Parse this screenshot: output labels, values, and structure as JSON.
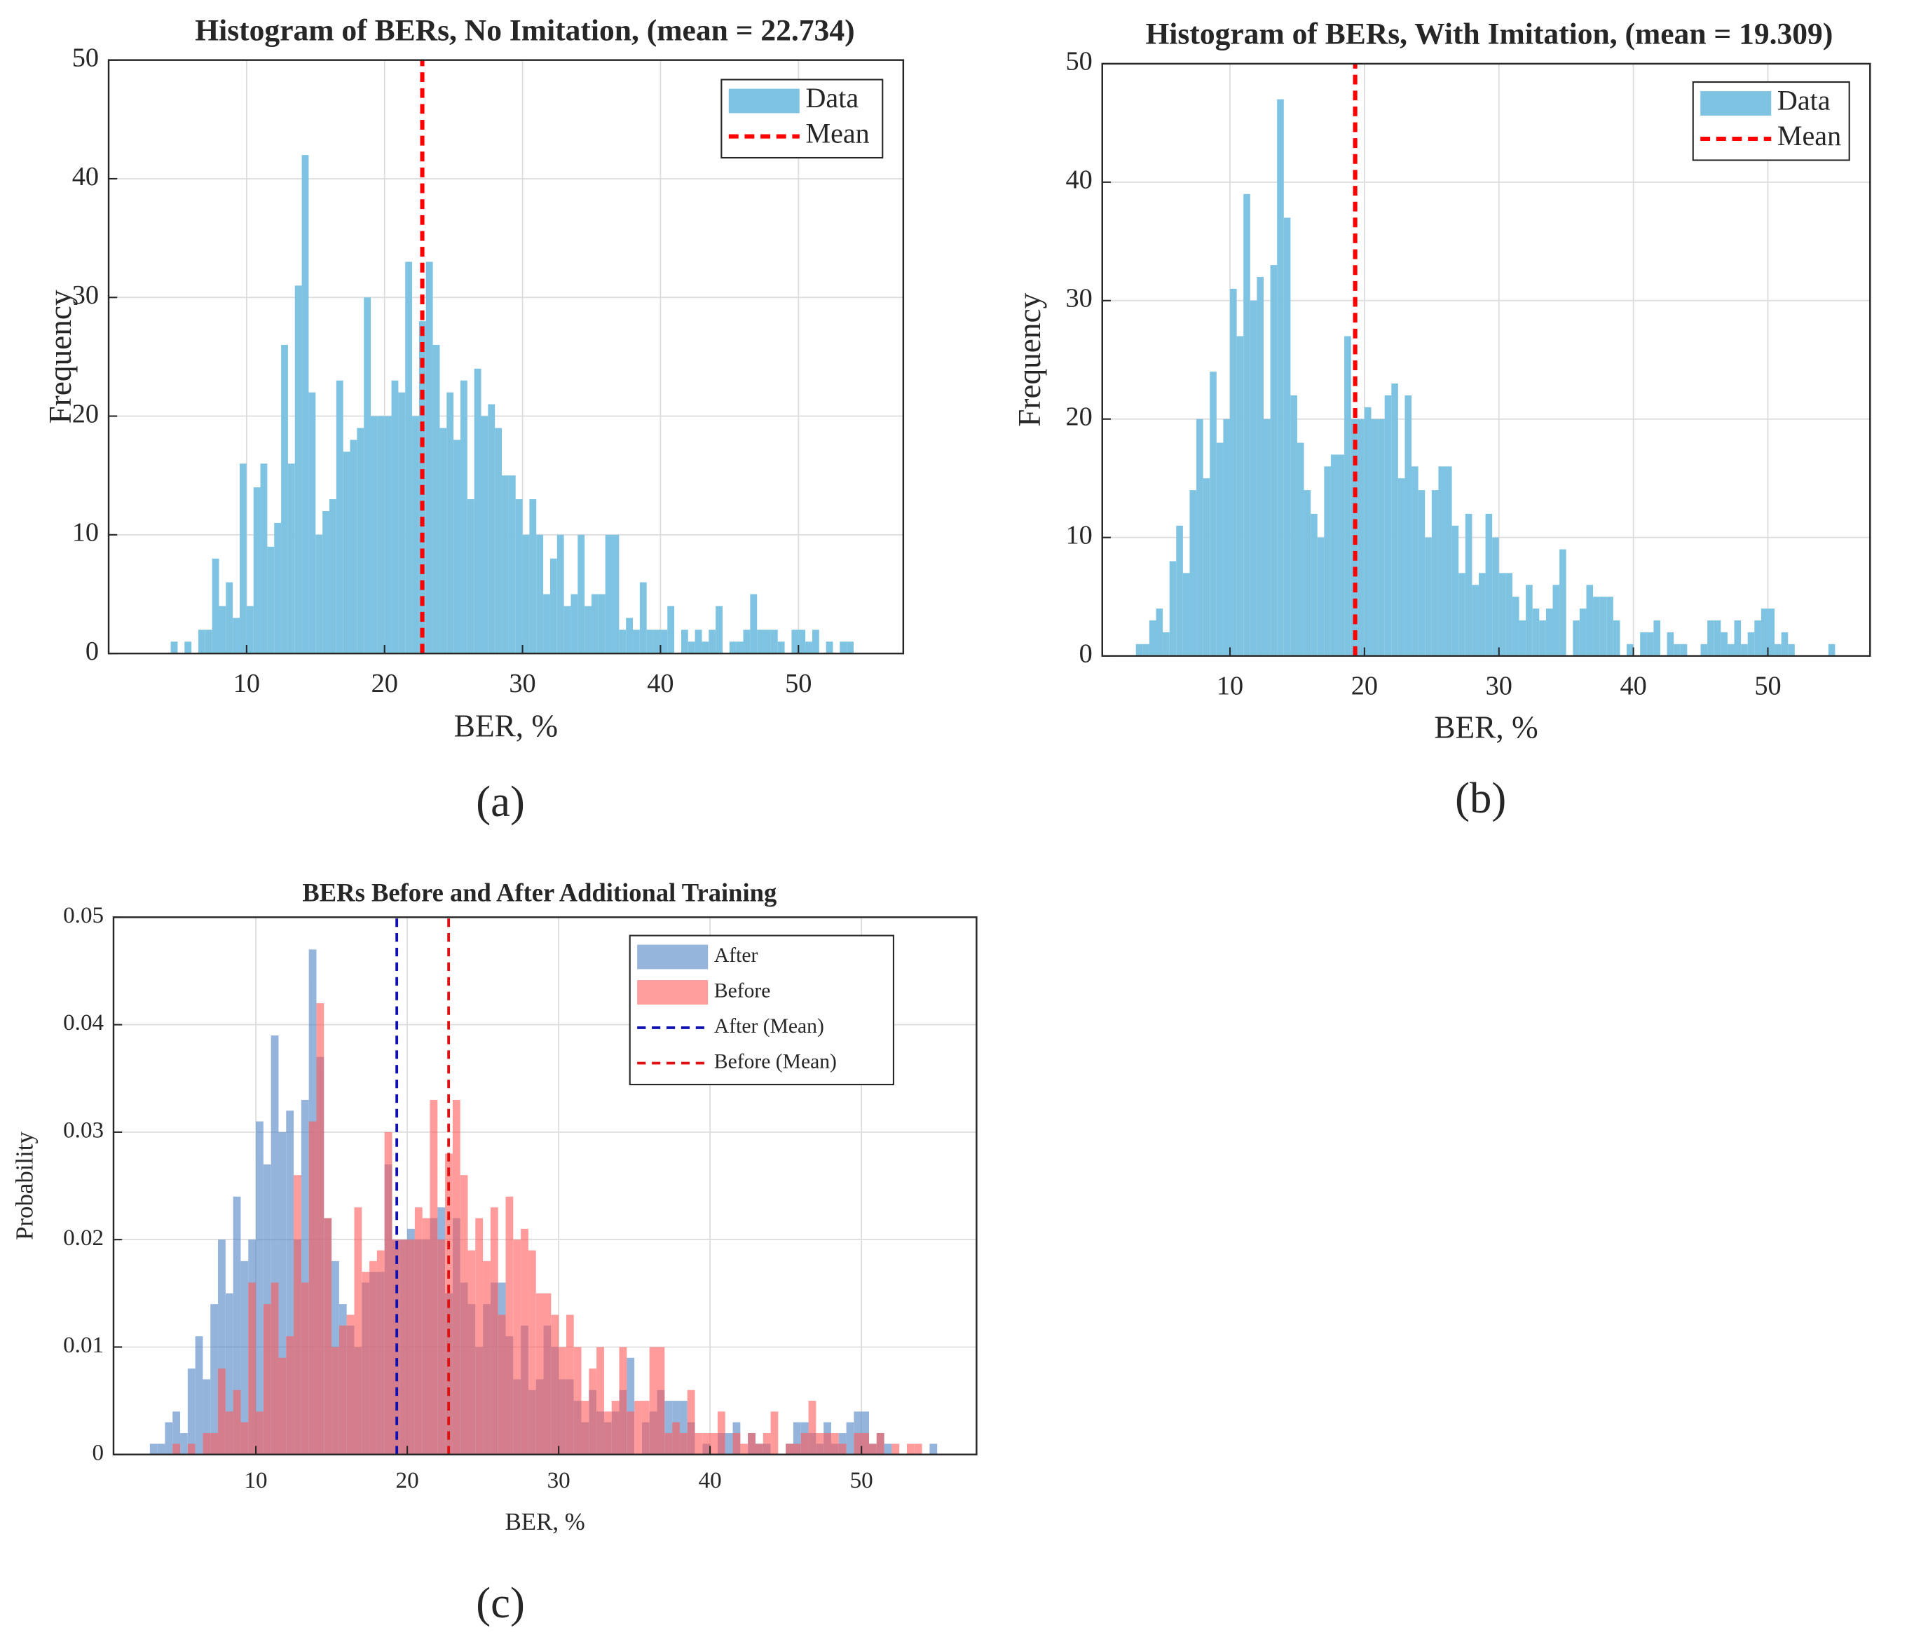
{
  "chart_data": [
    {
      "type": "histogram",
      "title": "Histogram of BERs, No Imitation, (mean = 22.734)",
      "xlabel": "BER, %",
      "ylabel": "Frequency",
      "caption": "(a)",
      "series": [
        {
          "name": "Data",
          "color": "#7ec4e2",
          "bins": [
            4,
            4.5,
            5,
            5.5,
            6,
            6.5,
            7,
            7.5,
            8,
            8.5,
            9,
            9.5,
            10,
            10.5,
            11,
            11.5,
            12,
            12.5,
            13,
            13.5,
            14,
            14.5,
            15,
            15.5,
            16,
            16.5,
            17,
            17.5,
            18,
            18.5,
            19,
            19.5,
            20,
            20.5,
            21,
            21.5,
            22,
            22.5,
            23,
            23.5,
            24,
            24.5,
            25,
            25.5,
            26,
            26.5,
            27,
            27.5,
            28,
            28.5,
            29,
            29.5,
            30,
            30.5,
            31,
            31.5,
            32,
            32.5,
            33,
            33.5,
            34,
            34.5,
            35,
            35.5,
            36,
            36.5,
            37,
            37.5,
            38,
            38.5,
            39,
            39.5,
            40,
            40.5,
            41,
            41.5,
            42,
            42.5,
            43,
            43.5,
            44,
            44.5,
            45,
            45.5,
            46,
            46.5,
            47,
            47.5,
            48,
            48.5,
            49,
            49.5,
            50,
            50.5,
            51,
            51.5,
            52,
            52.5,
            53,
            53.5,
            54,
            54.5,
            55
          ],
          "values": [
            0,
            1,
            0,
            1,
            0,
            2,
            2,
            8,
            4,
            6,
            3,
            16,
            4,
            14,
            16,
            9,
            11,
            26,
            16,
            31,
            42,
            22,
            10,
            12,
            13,
            23,
            17,
            18,
            19,
            30,
            20,
            20,
            20,
            23,
            22,
            33,
            20,
            28,
            33,
            26,
            19,
            22,
            18,
            23,
            13,
            24,
            20,
            21,
            19,
            15,
            15,
            13,
            10,
            13,
            10,
            5,
            8,
            10,
            4,
            5,
            10,
            4,
            5,
            5,
            10,
            10,
            2,
            3,
            2,
            6,
            2,
            2,
            2,
            4,
            0,
            2,
            1,
            2,
            1,
            2,
            4,
            0,
            1,
            1,
            2,
            5,
            2,
            2,
            2,
            1,
            0,
            2,
            2,
            1,
            2,
            0,
            1,
            0,
            1,
            1,
            0,
            0
          ]
        }
      ],
      "means": [
        {
          "name": "Mean",
          "value": 22.734,
          "color": "#ff0000"
        }
      ],
      "xlim": [
        0,
        57.6
      ],
      "ylim": [
        0,
        50
      ],
      "xticks": [
        10,
        20,
        30,
        40,
        50
      ],
      "yticks": [
        0,
        10,
        20,
        30,
        40,
        50
      ],
      "grid": true,
      "legend": "upper right"
    },
    {
      "type": "histogram",
      "title": "Histogram of BERs, With Imitation, (mean = 19.309)",
      "xlabel": "BER, %",
      "ylabel": "Frequency",
      "caption": "(b)",
      "series": [
        {
          "name": "Data",
          "color": "#7ec4e2",
          "bins": [
            3,
            3.5,
            4,
            4.5,
            5,
            5.5,
            6,
            6.5,
            7,
            7.5,
            8,
            8.5,
            9,
            9.5,
            10,
            10.5,
            11,
            11.5,
            12,
            12.5,
            13,
            13.5,
            14,
            14.5,
            15,
            15.5,
            16,
            16.5,
            17,
            17.5,
            18,
            18.5,
            19,
            19.5,
            20,
            20.5,
            21,
            21.5,
            22,
            22.5,
            23,
            23.5,
            24,
            24.5,
            25,
            25.5,
            26,
            26.5,
            27,
            27.5,
            28,
            28.5,
            29,
            29.5,
            30,
            30.5,
            31,
            31.5,
            32,
            32.5,
            33,
            33.5,
            34,
            34.5,
            35,
            35.5,
            36,
            36.5,
            37,
            37.5,
            38,
            38.5,
            39,
            39.5,
            40,
            40.5,
            41,
            41.5,
            42,
            42.5,
            43,
            43.5,
            44,
            44.5,
            45,
            45.5,
            46,
            46.5,
            47,
            47.5,
            48,
            48.5,
            49,
            49.5,
            50,
            50.5,
            51,
            51.5,
            52,
            52.5,
            53,
            53.5,
            54,
            54.5,
            55,
            55.5
          ],
          "values": [
            1,
            1,
            3,
            4,
            2,
            8,
            11,
            7,
            14,
            20,
            15,
            24,
            18,
            20,
            31,
            27,
            39,
            30,
            32,
            20,
            33,
            47,
            37,
            22,
            18,
            14,
            12,
            10,
            16,
            17,
            17,
            27,
            20,
            20,
            21,
            20,
            20,
            22,
            23,
            15,
            22,
            16,
            14,
            10,
            14,
            16,
            16,
            11,
            7,
            12,
            6,
            7,
            12,
            10,
            7,
            7,
            5,
            3,
            6,
            4,
            3,
            4,
            6,
            9,
            0,
            3,
            4,
            6,
            5,
            5,
            5,
            3,
            0,
            1,
            0,
            2,
            2,
            3,
            0,
            2,
            1,
            1,
            0,
            0,
            1,
            3,
            3,
            2,
            1,
            3,
            1,
            2,
            3,
            4,
            4,
            1,
            2,
            1,
            0,
            0,
            0,
            0,
            0,
            1,
            0
          ]
        }
      ],
      "means": [
        {
          "name": "Mean",
          "value": 19.309,
          "color": "#ff0000"
        }
      ],
      "xlim": [
        0.5,
        57.6
      ],
      "ylim": [
        0,
        50
      ],
      "xticks": [
        10,
        20,
        30,
        40,
        50
      ],
      "yticks": [
        0,
        10,
        20,
        30,
        40,
        50
      ],
      "grid": true,
      "legend": "upper right"
    },
    {
      "type": "histogram",
      "title": "BERs Before and After Additional Training",
      "xlabel": "BER, %",
      "ylabel": "Probability",
      "caption": "(c)",
      "series": [
        {
          "name": "After",
          "color": "#4f83c6",
          "bins": [
            3,
            3.5,
            4,
            4.5,
            5,
            5.5,
            6,
            6.5,
            7,
            7.5,
            8,
            8.5,
            9,
            9.5,
            10,
            10.5,
            11,
            11.5,
            12,
            12.5,
            13,
            13.5,
            14,
            14.5,
            15,
            15.5,
            16,
            16.5,
            17,
            17.5,
            18,
            18.5,
            19,
            19.5,
            20,
            20.5,
            21,
            21.5,
            22,
            22.5,
            23,
            23.5,
            24,
            24.5,
            25,
            25.5,
            26,
            26.5,
            27,
            27.5,
            28,
            28.5,
            29,
            29.5,
            30,
            30.5,
            31,
            31.5,
            32,
            32.5,
            33,
            33.5,
            34,
            34.5,
            35,
            35.5,
            36,
            36.5,
            37,
            37.5,
            38,
            38.5,
            39,
            39.5,
            40,
            40.5,
            41,
            41.5,
            42,
            42.5,
            43,
            43.5,
            44,
            44.5,
            45,
            45.5,
            46,
            46.5,
            47,
            47.5,
            48,
            48.5,
            49,
            49.5,
            50,
            50.5,
            51,
            51.5,
            52,
            52.5,
            53,
            53.5,
            54,
            54.5,
            55,
            55.5
          ],
          "values": [
            0.001,
            0.001,
            0.003,
            0.004,
            0.002,
            0.008,
            0.011,
            0.007,
            0.014,
            0.02,
            0.015,
            0.024,
            0.018,
            0.02,
            0.031,
            0.027,
            0.039,
            0.03,
            0.032,
            0.02,
            0.033,
            0.047,
            0.037,
            0.022,
            0.018,
            0.014,
            0.012,
            0.01,
            0.016,
            0.017,
            0.017,
            0.027,
            0.02,
            0.02,
            0.021,
            0.02,
            0.02,
            0.022,
            0.023,
            0.015,
            0.022,
            0.016,
            0.014,
            0.01,
            0.014,
            0.016,
            0.016,
            0.011,
            0.007,
            0.012,
            0.006,
            0.007,
            0.012,
            0.01,
            0.007,
            0.007,
            0.005,
            0.003,
            0.006,
            0.004,
            0.003,
            0.004,
            0.006,
            0.009,
            0,
            0.003,
            0.004,
            0.006,
            0.005,
            0.005,
            0.005,
            0.003,
            0,
            0.001,
            0,
            0.002,
            0.002,
            0.003,
            0,
            0.002,
            0.001,
            0.001,
            0,
            0,
            0.001,
            0.003,
            0.003,
            0.002,
            0.001,
            0.003,
            0.001,
            0.002,
            0.003,
            0.004,
            0.004,
            0.001,
            0.002,
            0.001,
            0,
            0,
            0,
            0,
            0,
            0.001,
            0
          ]
        },
        {
          "name": "Before",
          "color": "#ff5a5a",
          "bins": [
            4,
            4.5,
            5,
            5.5,
            6,
            6.5,
            7,
            7.5,
            8,
            8.5,
            9,
            9.5,
            10,
            10.5,
            11,
            11.5,
            12,
            12.5,
            13,
            13.5,
            14,
            14.5,
            15,
            15.5,
            16,
            16.5,
            17,
            17.5,
            18,
            18.5,
            19,
            19.5,
            20,
            20.5,
            21,
            21.5,
            22,
            22.5,
            23,
            23.5,
            24,
            24.5,
            25,
            25.5,
            26,
            26.5,
            27,
            27.5,
            28,
            28.5,
            29,
            29.5,
            30,
            30.5,
            31,
            31.5,
            32,
            32.5,
            33,
            33.5,
            34,
            34.5,
            35,
            35.5,
            36,
            36.5,
            37,
            37.5,
            38,
            38.5,
            39,
            39.5,
            40,
            40.5,
            41,
            41.5,
            42,
            42.5,
            43,
            43.5,
            44,
            44.5,
            45,
            45.5,
            46,
            46.5,
            47,
            47.5,
            48,
            48.5,
            49,
            49.5,
            50,
            50.5,
            51,
            51.5,
            52,
            52.5,
            53,
            53.5,
            54,
            54.5,
            55
          ],
          "values": [
            0,
            0.001,
            0,
            0.001,
            0,
            0.002,
            0.002,
            0.008,
            0.004,
            0.006,
            0.003,
            0.016,
            0.004,
            0.014,
            0.016,
            0.009,
            0.011,
            0.026,
            0.016,
            0.031,
            0.042,
            0.022,
            0.01,
            0.012,
            0.013,
            0.023,
            0.017,
            0.018,
            0.019,
            0.03,
            0.02,
            0.02,
            0.02,
            0.023,
            0.022,
            0.033,
            0.02,
            0.028,
            0.033,
            0.026,
            0.019,
            0.022,
            0.018,
            0.023,
            0.013,
            0.024,
            0.02,
            0.021,
            0.019,
            0.015,
            0.015,
            0.013,
            0.01,
            0.013,
            0.01,
            0.005,
            0.008,
            0.01,
            0.004,
            0.005,
            0.01,
            0.004,
            0.005,
            0.005,
            0.01,
            0.01,
            0.002,
            0.003,
            0.002,
            0.006,
            0.002,
            0.002,
            0.002,
            0.004,
            0,
            0.002,
            0.001,
            0.002,
            0.001,
            0.002,
            0.004,
            0,
            0.001,
            0.001,
            0.002,
            0.005,
            0.002,
            0.002,
            0.002,
            0.001,
            0,
            0.002,
            0.002,
            0.001,
            0.002,
            0,
            0.001,
            0,
            0.001,
            0.001,
            0,
            0
          ]
        }
      ],
      "means": [
        {
          "name": "After (Mean)",
          "value": 19.309,
          "color": "#1010b0"
        },
        {
          "name": "Before (Mean)",
          "value": 22.734,
          "color": "#e01010"
        }
      ],
      "xlim": [
        0.6,
        57.6
      ],
      "ylim": [
        0,
        0.05
      ],
      "xticks": [
        10,
        20,
        30,
        40,
        50
      ],
      "yticks": [
        0,
        0.01,
        0.02,
        0.03,
        0.04,
        0.05
      ],
      "grid": true,
      "legend": "upper right"
    }
  ]
}
